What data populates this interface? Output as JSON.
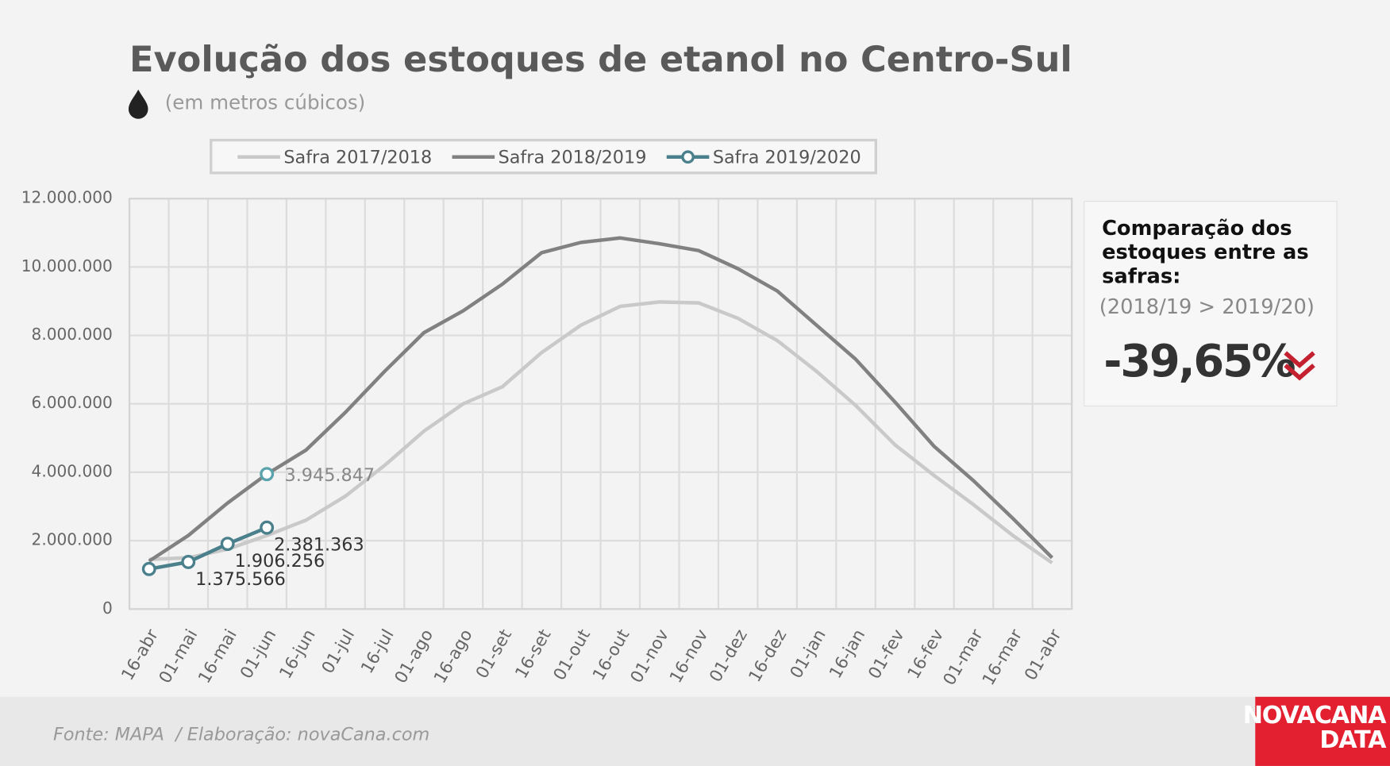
{
  "chart_data": {
    "type": "line",
    "title": "Evolução dos estoques de etanol no Centro-Sul",
    "subtitle": "(em metros cúbicos)",
    "categories": [
      "16-abr",
      "01-mai",
      "16-mai",
      "01-jun",
      "16-jun",
      "01-jul",
      "16-jul",
      "01-ago",
      "16-ago",
      "01-set",
      "16-set",
      "01-out",
      "16-out",
      "01-nov",
      "16-nov",
      "01-dez",
      "16-dez",
      "01-jan",
      "16-jan",
      "01-fev",
      "16-fev",
      "01-mar",
      "16-mar",
      "01-abr"
    ],
    "series": [
      {
        "name": "Safra 2017/2018",
        "color": "#c9c9c9",
        "values": [
          1450000,
          1500000,
          1750000,
          2150000,
          2600000,
          3300000,
          4200000,
          5200000,
          6000000,
          6500000,
          7500000,
          8300000,
          8850000,
          8980000,
          8950000,
          8500000,
          7850000,
          6950000,
          5950000,
          4800000,
          3900000,
          3050000,
          2150000,
          1350000
        ]
      },
      {
        "name": "Safra 2018/2019",
        "color": "#818181",
        "values": [
          1400000,
          2150000,
          3100000,
          3945847,
          4650000,
          5750000,
          6950000,
          8080000,
          8720000,
          9500000,
          10420000,
          10720000,
          10850000,
          10680000,
          10480000,
          9950000,
          9300000,
          8300000,
          7300000,
          6050000,
          4750000,
          3750000,
          2650000,
          1500000
        ],
        "value_labels": [
          null,
          null,
          null,
          "3.945.847",
          null,
          null,
          null,
          null,
          null,
          null,
          null,
          null,
          null,
          null,
          null,
          null,
          null,
          null,
          null,
          null,
          null,
          null,
          null,
          null
        ]
      },
      {
        "name": "Safra 2019/2020",
        "color": "#4a7f8c",
        "markers": true,
        "values": [
          1170000,
          1375566,
          1906256,
          2381363,
          null,
          null,
          null,
          null,
          null,
          null,
          null,
          null,
          null,
          null,
          null,
          null,
          null,
          null,
          null,
          null,
          null,
          null,
          null,
          null
        ],
        "value_labels": [
          null,
          "1.375.566",
          "1.906.256",
          "2.381.363",
          null,
          null,
          null,
          null,
          null,
          null,
          null,
          null,
          null,
          null,
          null,
          null,
          null,
          null,
          null,
          null,
          null,
          null,
          null,
          null
        ]
      }
    ],
    "ylim": [
      0,
      12000000
    ],
    "yticks": [
      0,
      {
        "value": 2000000,
        "label": "2.000.000"
      },
      {
        "value": 4000000,
        "label": "4.000.000"
      },
      {
        "value": 6000000,
        "label": "6.000.000"
      },
      {
        "value": 8000000,
        "label": "8.000.000"
      },
      {
        "value": 10000000,
        "label": "10.000.000"
      },
      {
        "value": 12000000,
        "label": "12.000.000"
      }
    ],
    "grid": true,
    "legend": "top",
    "annotation": {
      "title": "Comparação dos estoques entre as safras:",
      "subtitle": "(2018/19 > 2019/20)",
      "value": "-39,65%"
    },
    "source": "Fonte: MAPA  / Elaboração: novaCana.com",
    "logo": [
      "NOVACANA",
      "DATA"
    ]
  }
}
